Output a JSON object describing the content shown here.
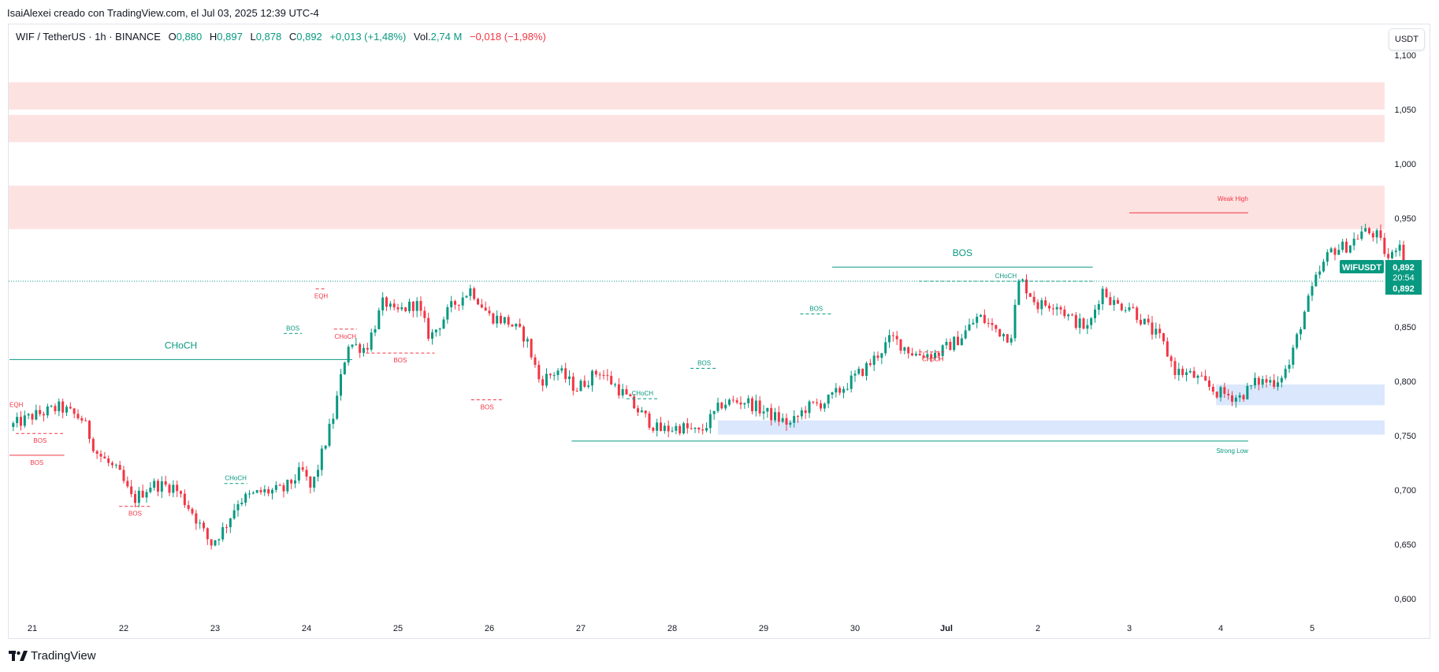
{
  "caption": "IsaiAlexei creado con TradingView.com, el Jul 03, 2025 12:39 UTC-4",
  "legend": {
    "symbol": "WIF / TetherUS · 1h · BINANCE",
    "o_label": "O",
    "o_value": "0,880",
    "h_label": "H",
    "h_value": "0,897",
    "l_label": "L",
    "l_value": "0,878",
    "c_label": "C",
    "c_value": "0,892",
    "change": "+0,013 (+1,48%)",
    "vol_label": "Vol.",
    "vol_value": "2,74 M",
    "vol_change": "−0,018 (−1,98%)"
  },
  "currency_button": "USDT",
  "brand": "TradingView",
  "colors": {
    "up": "#089981",
    "down": "#f23645",
    "supply_zone": "#fde2e2",
    "demand_zone": "#dae7fd",
    "text": "#131722",
    "axis_text": "#131722"
  },
  "chart_data": {
    "type": "candlestick",
    "symbol": "WIFUSDT",
    "timeframe": "1h",
    "x_ticks": [
      "21",
      "22",
      "23",
      "24",
      "25",
      "26",
      "27",
      "28",
      "29",
      "30",
      "Jul",
      "2",
      "3",
      "4",
      "5"
    ],
    "x_range_days": [
      20.75,
      35.8
    ],
    "y_ticks": [
      "1,100",
      "1,050",
      "1,000",
      "0,950",
      "0,900",
      "0,850",
      "0,800",
      "0,750",
      "0,700",
      "0,650",
      "0,600"
    ],
    "y_range": [
      0.585,
      1.11
    ],
    "last_price_label": "WIFUSDT",
    "last_price": "0,892",
    "countdown": "20:54",
    "last_price_line": 0.892,
    "price_path": [
      [
        20.75,
        0.758
      ],
      [
        21.0,
        0.768
      ],
      [
        21.3,
        0.776
      ],
      [
        21.55,
        0.765
      ],
      [
        21.7,
        0.735
      ],
      [
        21.95,
        0.715
      ],
      [
        22.1,
        0.69
      ],
      [
        22.3,
        0.705
      ],
      [
        22.55,
        0.703
      ],
      [
        22.75,
        0.68
      ],
      [
        22.95,
        0.65
      ],
      [
        23.1,
        0.665
      ],
      [
        23.25,
        0.69
      ],
      [
        23.5,
        0.698
      ],
      [
        23.75,
        0.7
      ],
      [
        23.95,
        0.718
      ],
      [
        24.05,
        0.7
      ],
      [
        24.3,
        0.77
      ],
      [
        24.45,
        0.835
      ],
      [
        24.65,
        0.83
      ],
      [
        24.85,
        0.875
      ],
      [
        24.95,
        0.862
      ],
      [
        25.2,
        0.872
      ],
      [
        25.35,
        0.84
      ],
      [
        25.6,
        0.87
      ],
      [
        25.8,
        0.885
      ],
      [
        26.0,
        0.86
      ],
      [
        26.2,
        0.855
      ],
      [
        26.4,
        0.84
      ],
      [
        26.55,
        0.8
      ],
      [
        26.75,
        0.81
      ],
      [
        26.95,
        0.793
      ],
      [
        27.2,
        0.81
      ],
      [
        27.45,
        0.79
      ],
      [
        27.6,
        0.775
      ],
      [
        27.85,
        0.755
      ],
      [
        28.1,
        0.758
      ],
      [
        28.3,
        0.752
      ],
      [
        28.55,
        0.78
      ],
      [
        28.8,
        0.782
      ],
      [
        29.05,
        0.77
      ],
      [
        29.3,
        0.76
      ],
      [
        29.45,
        0.775
      ],
      [
        29.7,
        0.782
      ],
      [
        29.95,
        0.8
      ],
      [
        30.15,
        0.815
      ],
      [
        30.4,
        0.84
      ],
      [
        30.65,
        0.825
      ],
      [
        30.9,
        0.825
      ],
      [
        31.15,
        0.84
      ],
      [
        31.35,
        0.86
      ],
      [
        31.5,
        0.85
      ],
      [
        31.7,
        0.84
      ],
      [
        31.8,
        0.895
      ],
      [
        32.0,
        0.87
      ],
      [
        32.2,
        0.872
      ],
      [
        32.35,
        0.858
      ],
      [
        32.55,
        0.848
      ],
      [
        32.7,
        0.885
      ],
      [
        32.85,
        0.87
      ],
      [
        33.0,
        0.87
      ],
      [
        33.2,
        0.85
      ],
      [
        33.35,
        0.838
      ],
      [
        33.5,
        0.81
      ],
      [
        33.7,
        0.805
      ],
      [
        33.95,
        0.79
      ],
      [
        34.2,
        0.785
      ],
      [
        34.4,
        0.8
      ],
      [
        34.6,
        0.8
      ],
      [
        34.75,
        0.815
      ],
      [
        34.9,
        0.86
      ],
      [
        35.05,
        0.895
      ],
      [
        35.2,
        0.92
      ],
      [
        35.4,
        0.925
      ],
      [
        35.55,
        0.938
      ],
      [
        35.7,
        0.935
      ],
      [
        35.85,
        0.91
      ],
      [
        35.95,
        0.932
      ],
      [
        36.05,
        0.885
      ],
      [
        36.12,
        0.892
      ]
    ],
    "zones": {
      "supply": [
        {
          "from": 1.05,
          "to": 1.075
        },
        {
          "from": 1.02,
          "to": 1.045
        },
        {
          "from": 0.94,
          "to": 0.98
        }
      ],
      "demand": [
        {
          "from": 0.778,
          "to": 0.797,
          "start_day": 33.95
        },
        {
          "from": 0.751,
          "to": 0.764,
          "start_day": 28.5
        }
      ]
    },
    "levels": [
      {
        "label": "CHoCH",
        "type": "bull",
        "price": 0.82,
        "from": 20.75,
        "to": 24.5,
        "style": "solid"
      },
      {
        "label": "EQH",
        "type": "bear",
        "price": 0.785,
        "from": 20.75,
        "to": 20.9,
        "style": "none"
      },
      {
        "label": "BOS",
        "type": "bear",
        "price": 0.752,
        "from": 20.82,
        "to": 21.35,
        "style": "dashed"
      },
      {
        "label": "BOS",
        "type": "bear",
        "price": 0.732,
        "from": 20.75,
        "to": 21.35,
        "style": "solid"
      },
      {
        "label": "BOS",
        "type": "bear",
        "price": 0.685,
        "from": 21.95,
        "to": 22.3,
        "style": "dashed"
      },
      {
        "label": "CHoCH",
        "type": "bull",
        "price": 0.706,
        "from": 23.1,
        "to": 23.35,
        "style": "dashed"
      },
      {
        "label": "BOS",
        "type": "bull",
        "price": 0.844,
        "from": 23.75,
        "to": 23.95,
        "style": "dashed"
      },
      {
        "label": "EQH",
        "type": "bear",
        "price": 0.885,
        "from": 24.1,
        "to": 24.22,
        "style": "dashed"
      },
      {
        "label": "CHoCH",
        "type": "bear",
        "price": 0.848,
        "from": 24.3,
        "to": 24.55,
        "style": "dashed"
      },
      {
        "label": "BOS",
        "type": "bear",
        "price": 0.826,
        "from": 24.65,
        "to": 25.4,
        "style": "dashed"
      },
      {
        "label": "BOS",
        "type": "bear",
        "price": 0.783,
        "from": 25.8,
        "to": 26.15,
        "style": "dashed"
      },
      {
        "label": "CHoCH",
        "type": "bull",
        "price": 0.784,
        "from": 27.5,
        "to": 27.85,
        "style": "dashed"
      },
      {
        "label": "BOS",
        "type": "bull",
        "price": 0.812,
        "from": 28.2,
        "to": 28.5,
        "style": "dashed"
      },
      {
        "label": "BOS",
        "type": "bull",
        "price": 0.862,
        "from": 29.4,
        "to": 29.75,
        "style": "dashed"
      },
      {
        "label": "BOS",
        "type": "bull",
        "price": 0.905,
        "from": 29.75,
        "to": 32.6,
        "style": "solid"
      },
      {
        "label": "CHoCH",
        "type": "bull",
        "price": 0.892,
        "from": 30.7,
        "to": 32.6,
        "style": "dashed"
      },
      {
        "label": "CHoCH",
        "type": "bear",
        "price": 0.827,
        "from": 30.7,
        "to": 31.0,
        "style": "dashed"
      },
      {
        "label": "Weak High",
        "type": "bear",
        "price": 0.955,
        "from": 33.0,
        "to": 34.3,
        "style": "solid"
      },
      {
        "label": "Strong Low",
        "type": "bull",
        "price": 0.745,
        "from": 26.9,
        "to": 34.3,
        "style": "solid"
      }
    ]
  }
}
